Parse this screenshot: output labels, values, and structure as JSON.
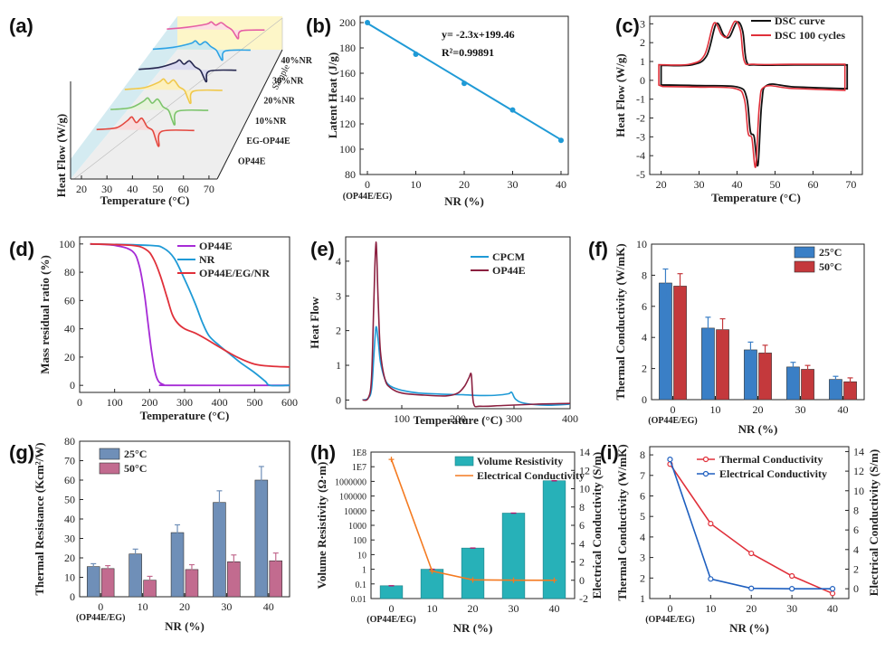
{
  "figure": {
    "panel_labels": [
      "(a)",
      "(b)",
      "(c)",
      "(d)",
      "(e)",
      "(f)",
      "(g)",
      "(h)",
      "(i)"
    ],
    "colors": {
      "blue": "#1f9ad6",
      "red": "#e0303a",
      "purple": "#a62bd6",
      "maroon": "#8b2040",
      "barBlue": "#3a7fc6",
      "barRed": "#c4393c",
      "barSteel": "#6f8fb8",
      "barPink": "#c26b8f",
      "teal": "#27b1b8",
      "orange": "#f47a20",
      "navy": "#1e5fbf"
    }
  },
  "chart_data": [
    {
      "panel": "(a)",
      "type": "line",
      "title": "",
      "xlabel": "Temperature (°C)",
      "ylabel": "Heat Flow (W/g)",
      "zlabel": "Sample",
      "x_ticks": [
        "20",
        "30",
        "40",
        "50",
        "60",
        "70"
      ],
      "samples": [
        "OP44E",
        "EG-OP44E",
        "10%NR",
        "20%NR",
        "30%NR",
        "40%NR"
      ],
      "xlim": [
        20,
        75
      ]
    },
    {
      "panel": "(b)",
      "type": "scatter",
      "xlabel": "NR (%)",
      "ylabel": "Latent Heat (J/g)",
      "xlim": [
        -1.5,
        41.5
      ],
      "ylim": [
        80,
        205
      ],
      "x_ticks": [
        0,
        10,
        20,
        30,
        40
      ],
      "y_ticks": [
        80,
        100,
        120,
        140,
        160,
        180,
        200
      ],
      "x_note": "(OP44E/EG)",
      "x": [
        0,
        10,
        20,
        30,
        40
      ],
      "y": [
        200,
        175,
        152,
        131,
        107
      ],
      "fit_equation": "y= -2.3x+199.46",
      "r2_label": "R²=0.99891",
      "fit": {
        "slope": -2.3,
        "intercept": 199.46
      }
    },
    {
      "panel": "(c)",
      "type": "line",
      "xlabel": "Temperature (°C)",
      "ylabel": "Heat Flow (W/g)",
      "xlim": [
        17,
        73
      ],
      "ylim": [
        -5,
        3.4
      ],
      "x_ticks": [
        20,
        30,
        40,
        50,
        60,
        70
      ],
      "y_ticks": [
        -5,
        -4,
        -3,
        -2,
        -1,
        0,
        1,
        2,
        3
      ],
      "series": [
        {
          "name": "DSC curve",
          "color": "#111111"
        },
        {
          "name": "DSC 100 cycles",
          "color": "#e0303a"
        }
      ]
    },
    {
      "panel": "(d)",
      "type": "line",
      "xlabel": "Temperature (°C)",
      "ylabel": "Mass residual ratio (%)",
      "xlim": [
        0,
        600
      ],
      "ylim": [
        -5,
        105
      ],
      "x_ticks": [
        0,
        100,
        200,
        300,
        400,
        500,
        600
      ],
      "y_ticks": [
        0,
        20,
        40,
        60,
        80,
        100
      ],
      "series": [
        {
          "name": "OP44E",
          "color": "#a62bd6",
          "x": [
            30,
            100,
            150,
            170,
            185,
            195,
            205,
            215,
            225,
            240,
            260,
            600
          ],
          "y": [
            100,
            99,
            95,
            85,
            65,
            45,
            25,
            10,
            3,
            0.5,
            0,
            0
          ]
        },
        {
          "name": "NR",
          "color": "#1f9ad6",
          "x": [
            30,
            200,
            240,
            270,
            300,
            330,
            350,
            370,
            400,
            430,
            460,
            500,
            530,
            545,
            600
          ],
          "y": [
            100,
            99,
            97,
            90,
            75,
            58,
            45,
            35,
            28,
            22,
            16,
            9,
            3,
            0,
            0
          ]
        },
        {
          "name": "OP44E/EG/NR",
          "color": "#e0303a",
          "x": [
            30,
            150,
            190,
            210,
            230,
            250,
            265,
            280,
            300,
            330,
            360,
            400,
            450,
            500,
            550,
            600
          ],
          "y": [
            100,
            99,
            96,
            90,
            78,
            62,
            50,
            44,
            40,
            37,
            33,
            27,
            20,
            15,
            13.5,
            13
          ]
        }
      ]
    },
    {
      "panel": "(e)",
      "type": "line",
      "xlabel": "Temperature (°C)",
      "ylabel": "Heat Flow",
      "xlim": [
        0,
        400
      ],
      "ylim": [
        -0.25,
        4.7
      ],
      "x_ticks": [
        100,
        200,
        300,
        400
      ],
      "y_ticks": [
        0,
        1,
        2,
        3,
        4
      ],
      "series": [
        {
          "name": "CPCM",
          "color": "#1f9ad6",
          "x": [
            30,
            40,
            46,
            50,
            54,
            58,
            62,
            70,
            80,
            100,
            130,
            170,
            210,
            240,
            270,
            290,
            296,
            303,
            320,
            360,
            400
          ],
          "y": [
            0,
            0.05,
            0.3,
            1.2,
            2.1,
            1.7,
            1.1,
            0.6,
            0.4,
            0.28,
            0.2,
            0.17,
            0.15,
            0.13,
            0.14,
            0.18,
            0.22,
            0.02,
            -0.1,
            -0.15,
            -0.12
          ]
        },
        {
          "name": "OP44E",
          "color": "#8b2040",
          "x": [
            30,
            40,
            46,
            50,
            54,
            58,
            62,
            70,
            80,
            100,
            140,
            180,
            200,
            212,
            220,
            224,
            228,
            240,
            280,
            340,
            400
          ],
          "y": [
            0,
            0.05,
            0.6,
            2.7,
            4.55,
            2.8,
            1.4,
            0.6,
            0.35,
            0.2,
            0.14,
            0.12,
            0.2,
            0.4,
            0.65,
            0.72,
            -0.1,
            -0.18,
            -0.16,
            -0.12,
            -0.1
          ]
        }
      ]
    },
    {
      "panel": "(f)",
      "type": "bar",
      "xlabel": "NR (%)",
      "ylabel": "Thermal Conductivity (W/mK)",
      "x_note": "(OP44E/EG)",
      "categories": [
        "0",
        "10",
        "20",
        "30",
        "40"
      ],
      "ylim": [
        0,
        10
      ],
      "y_ticks": [
        0,
        2,
        4,
        6,
        8,
        10
      ],
      "series": [
        {
          "name": "25°C",
          "values": [
            7.5,
            4.6,
            3.2,
            2.1,
            1.3
          ],
          "errors": [
            0.9,
            0.7,
            0.5,
            0.3,
            0.2
          ]
        },
        {
          "name": "50°C",
          "values": [
            7.3,
            4.5,
            3.0,
            1.95,
            1.15
          ],
          "errors": [
            0.8,
            0.7,
            0.5,
            0.25,
            0.25
          ]
        }
      ]
    },
    {
      "panel": "(g)",
      "type": "bar",
      "xlabel": "NR (%)",
      "ylabel": "Thermal Resistance (Kcm²/W)",
      "x_note": "(OP44E/EG)",
      "categories": [
        "0",
        "10",
        "20",
        "30",
        "40"
      ],
      "ylim": [
        0,
        80
      ],
      "y_ticks": [
        0,
        10,
        20,
        30,
        40,
        50,
        60,
        70,
        80
      ],
      "series": [
        {
          "name": "25°C",
          "values": [
            15.5,
            22,
            33,
            48.5,
            60
          ],
          "errors": [
            1.5,
            2.5,
            4,
            6,
            7
          ]
        },
        {
          "name": "50°C",
          "values": [
            14.5,
            8.5,
            14,
            18,
            18.5
          ],
          "errors": [
            1.5,
            2,
            2.5,
            3.5,
            4
          ]
        }
      ]
    },
    {
      "panel": "(h)",
      "type": "bar",
      "xlabel": "NR (%)",
      "ylabel": "Volume Resistivity (Ω·m)",
      "ylabel2": "Electrical Conductivity (S/m)",
      "x_note": "(OP44E/EG)",
      "categories": [
        "0",
        "10",
        "20",
        "30",
        "40"
      ],
      "y_scale": "log",
      "ylim": [
        0.01,
        100000000
      ],
      "y_ticks": [
        "0.01",
        "0.1",
        "1",
        "10",
        "100",
        "1000",
        "10000",
        "100000",
        "1000000",
        "1E7",
        "1E8"
      ],
      "y2lim": [
        -2,
        14
      ],
      "y2_ticks": [
        -2,
        0,
        2,
        4,
        6,
        8,
        10,
        12,
        14
      ],
      "series": [
        {
          "name": "Volume Resistivity",
          "type": "bar",
          "values": [
            0.075,
            1.0,
            28,
            6800,
            1100000
          ]
        },
        {
          "name": "Electrical Conductivity",
          "type": "line",
          "axis": "right",
          "values": [
            13.2,
            1.0,
            0.04,
            0.0002,
            0.0
          ]
        }
      ]
    },
    {
      "panel": "(i)",
      "type": "line",
      "xlabel": "NR (%)",
      "ylabel": "Thermal Conductivity (W/mK)",
      "ylabel2": "Electrical Conductivity (S/m)",
      "x_note": "(OP44E/EG)",
      "x": [
        0,
        10,
        20,
        30,
        40
      ],
      "xlim": [
        -5,
        44
      ],
      "ylim": [
        1,
        8.4
      ],
      "y_ticks": [
        1,
        2,
        3,
        4,
        5,
        6,
        7,
        8
      ],
      "y2lim": [
        -1,
        14.5
      ],
      "y2_ticks": [
        0,
        2,
        4,
        6,
        8,
        10,
        12,
        14
      ],
      "series": [
        {
          "name": "Thermal Conductivity",
          "axis": "left",
          "values": [
            7.55,
            4.65,
            3.2,
            2.1,
            1.25
          ]
        },
        {
          "name": "Electrical Conductivity",
          "axis": "right",
          "values": [
            13.2,
            1.0,
            0.04,
            0.0002,
            0.0
          ]
        }
      ]
    }
  ]
}
